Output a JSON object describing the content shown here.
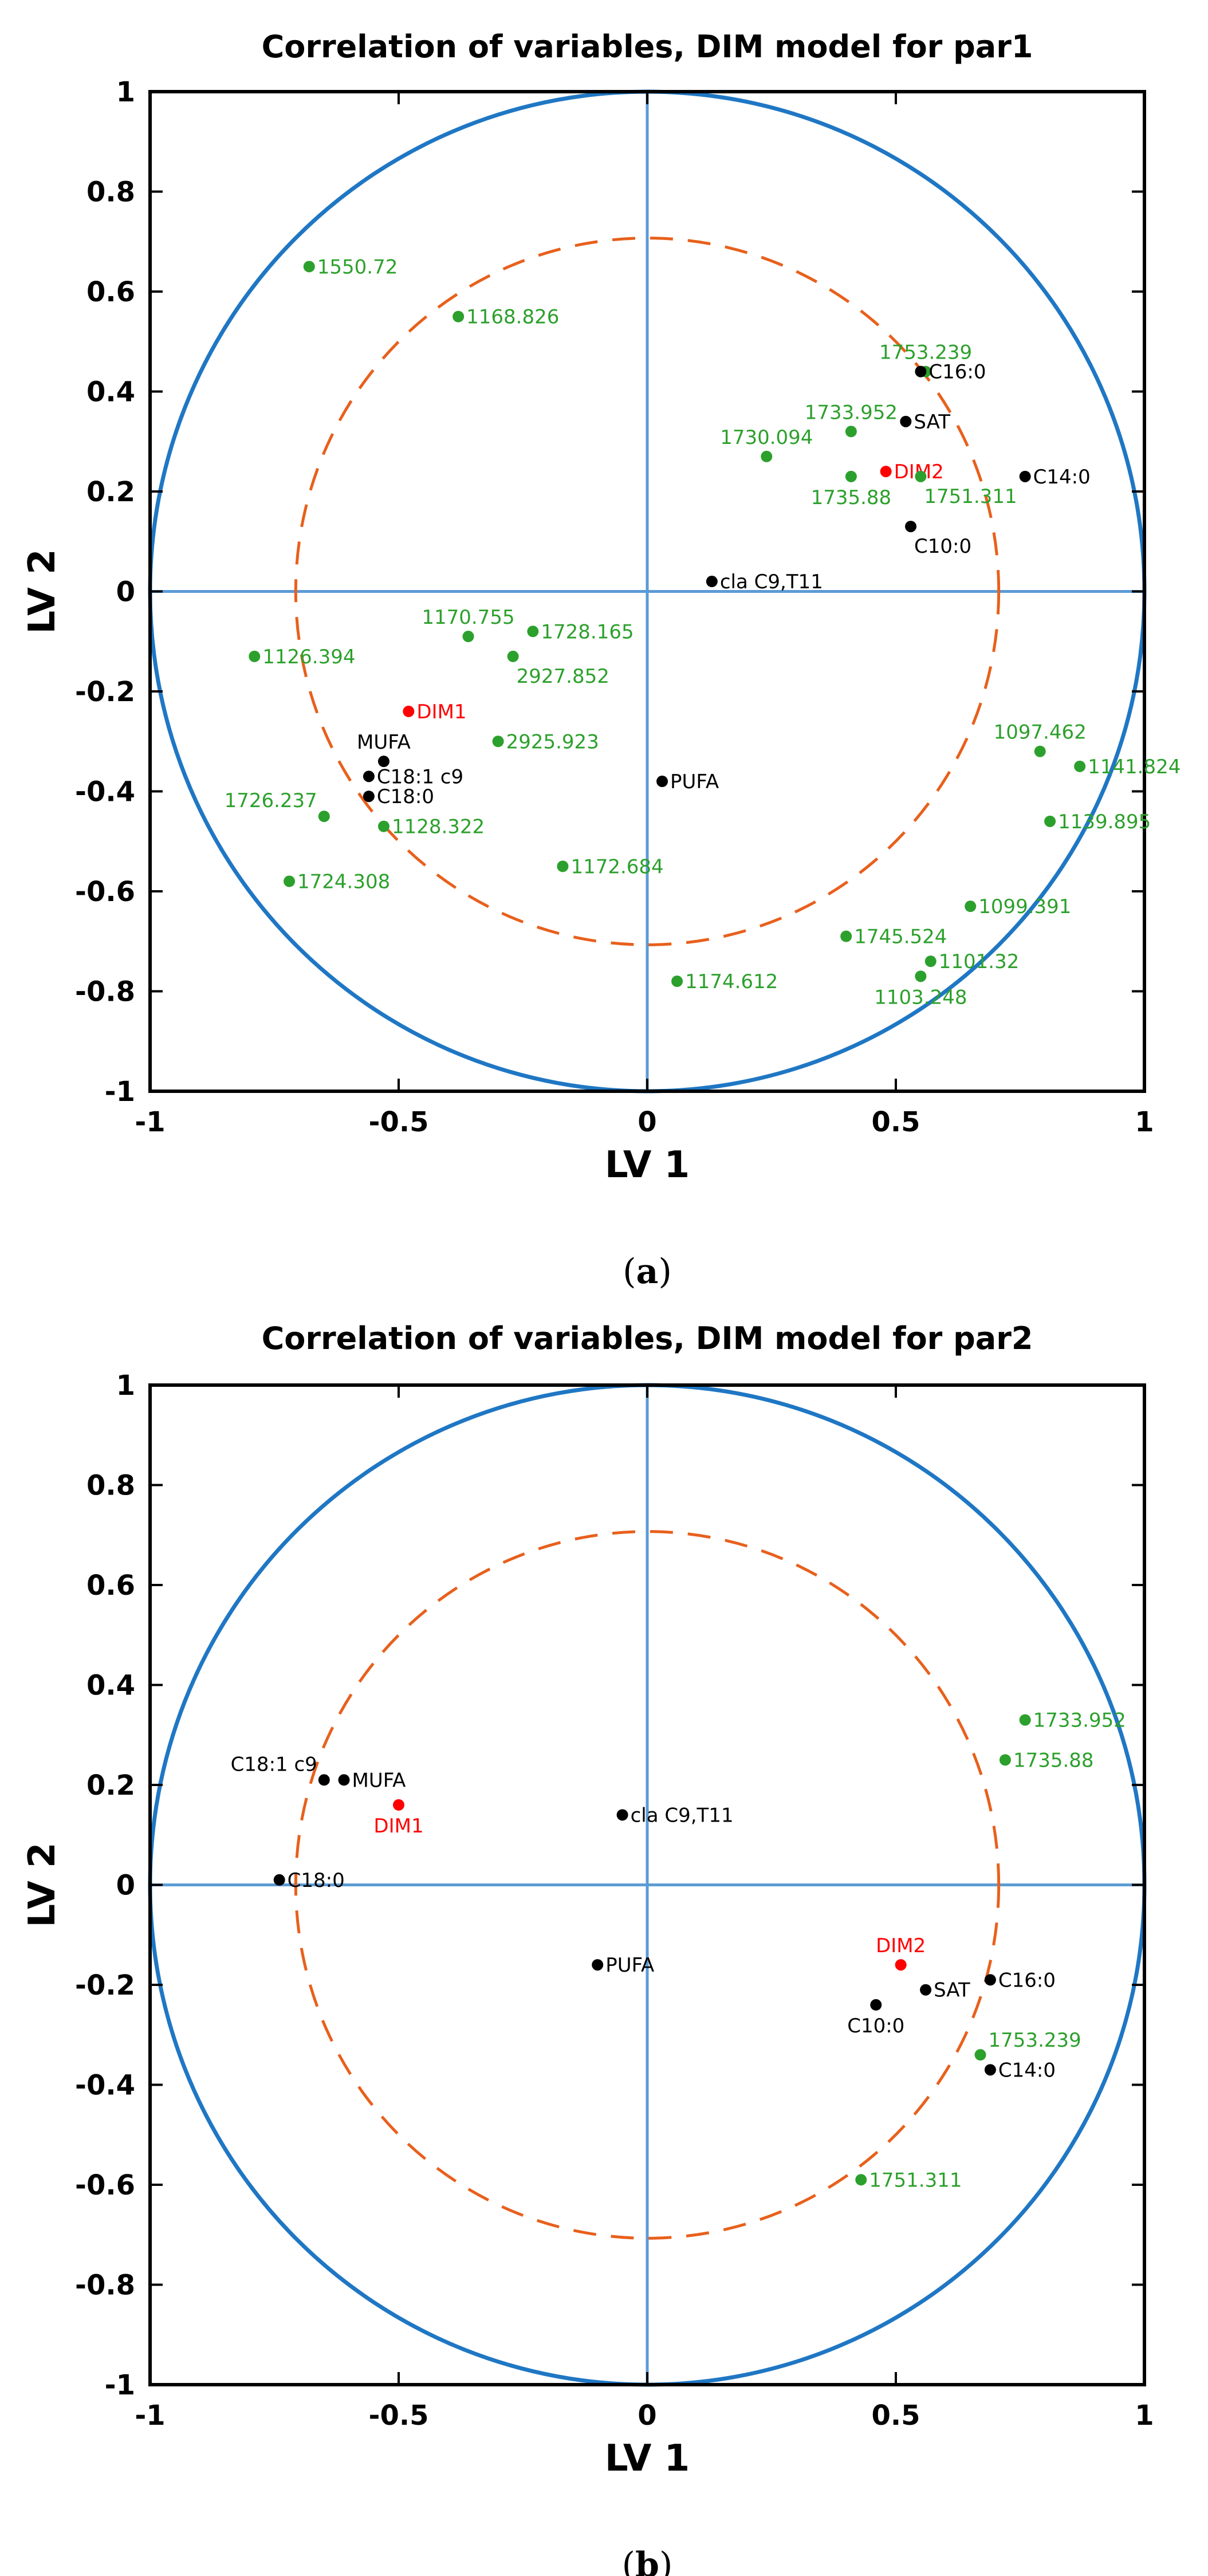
{
  "colors": {
    "unit_circle": "#1f77c4",
    "half_circle": "#e8601c",
    "axes": "#5b9bd5",
    "variable": "#000000",
    "wavenumber": "#2ca02c",
    "dummy": "#ff0000"
  },
  "chart_data": [
    {
      "type": "scatter",
      "title": "Correlation of variables, DIM model for par1",
      "xlabel": "LV  1",
      "ylabel": "LV  2",
      "xlim": [
        -1,
        1
      ],
      "ylim": [
        -1,
        1
      ],
      "xticks": [
        "-1",
        "-0.5",
        "0",
        "0.5",
        "1"
      ],
      "yticks": [
        "1",
        "0.8",
        "0.6",
        "0.4",
        "0.2",
        "0",
        "-0.2",
        "-0.4",
        "-0.6",
        "-0.8",
        "-1"
      ],
      "caption_letter": "a",
      "circles": [
        {
          "radius": 1,
          "style": "solid"
        },
        {
          "radius": 0.707,
          "style": "dashed"
        }
      ],
      "points": [
        {
          "label": "1550.72",
          "x": -0.68,
          "y": 0.65,
          "group": "wavenumber",
          "lpos": "r"
        },
        {
          "label": "1168.826",
          "x": -0.38,
          "y": 0.55,
          "group": "wavenumber",
          "lpos": "r"
        },
        {
          "label": "1753.239",
          "x": 0.56,
          "y": 0.44,
          "group": "wavenumber",
          "lpos": "ua"
        },
        {
          "label": "C16:0",
          "x": 0.55,
          "y": 0.44,
          "group": "variable",
          "lpos": "r"
        },
        {
          "label": "SAT",
          "x": 0.52,
          "y": 0.34,
          "group": "variable",
          "lpos": "r"
        },
        {
          "label": "1733.952",
          "x": 0.41,
          "y": 0.32,
          "group": "wavenumber",
          "lpos": "ua"
        },
        {
          "label": "1730.094",
          "x": 0.24,
          "y": 0.27,
          "group": "wavenumber",
          "lpos": "ua"
        },
        {
          "label": "DIM2",
          "x": 0.48,
          "y": 0.24,
          "group": "dummy",
          "lpos": "r"
        },
        {
          "label": "1735.88",
          "x": 0.41,
          "y": 0.23,
          "group": "wavenumber",
          "lpos": "b"
        },
        {
          "label": "1751.311",
          "x": 0.55,
          "y": 0.23,
          "group": "wavenumber",
          "lpos": "br"
        },
        {
          "label": "C14:0",
          "x": 0.76,
          "y": 0.23,
          "group": "variable",
          "lpos": "r"
        },
        {
          "label": "C10:0",
          "x": 0.53,
          "y": 0.13,
          "group": "variable",
          "lpos": "br"
        },
        {
          "label": "cla C9,T11",
          "x": 0.13,
          "y": 0.02,
          "group": "variable",
          "lpos": "r"
        },
        {
          "label": "1170.755",
          "x": -0.36,
          "y": -0.09,
          "group": "wavenumber",
          "lpos": "ua"
        },
        {
          "label": "1728.165",
          "x": -0.23,
          "y": -0.08,
          "group": "wavenumber",
          "lpos": "r"
        },
        {
          "label": "1126.394",
          "x": -0.79,
          "y": -0.13,
          "group": "wavenumber",
          "lpos": "r"
        },
        {
          "label": "2927.852",
          "x": -0.27,
          "y": -0.13,
          "group": "wavenumber",
          "lpos": "br"
        },
        {
          "label": "DIM1",
          "x": -0.48,
          "y": -0.24,
          "group": "dummy",
          "lpos": "r"
        },
        {
          "label": "2925.923",
          "x": -0.3,
          "y": -0.3,
          "group": "wavenumber",
          "lpos": "r"
        },
        {
          "label": "MUFA",
          "x": -0.53,
          "y": -0.34,
          "group": "variable",
          "lpos": "ua"
        },
        {
          "label": "C18:1 c9",
          "x": -0.56,
          "y": -0.37,
          "group": "variable",
          "lpos": "r"
        },
        {
          "label": "PUFA",
          "x": 0.03,
          "y": -0.38,
          "group": "variable",
          "lpos": "r"
        },
        {
          "label": "C18:0",
          "x": -0.56,
          "y": -0.41,
          "group": "variable",
          "lpos": "r"
        },
        {
          "label": "1726.237",
          "x": -0.65,
          "y": -0.45,
          "group": "wavenumber",
          "lpos": "ul"
        },
        {
          "label": "1128.322",
          "x": -0.53,
          "y": -0.47,
          "group": "wavenumber",
          "lpos": "r"
        },
        {
          "label": "1172.684",
          "x": -0.17,
          "y": -0.55,
          "group": "wavenumber",
          "lpos": "r"
        },
        {
          "label": "1724.308",
          "x": -0.72,
          "y": -0.58,
          "group": "wavenumber",
          "lpos": "r"
        },
        {
          "label": "1097.462",
          "x": 0.79,
          "y": -0.32,
          "group": "wavenumber",
          "lpos": "ua"
        },
        {
          "label": "1141.824",
          "x": 0.87,
          "y": -0.35,
          "group": "wavenumber",
          "lpos": "r"
        },
        {
          "label": "1139.895",
          "x": 0.81,
          "y": -0.46,
          "group": "wavenumber",
          "lpos": "r"
        },
        {
          "label": "1099.391",
          "x": 0.65,
          "y": -0.63,
          "group": "wavenumber",
          "lpos": "r"
        },
        {
          "label": "1745.524",
          "x": 0.4,
          "y": -0.69,
          "group": "wavenumber",
          "lpos": "r"
        },
        {
          "label": "1101.32",
          "x": 0.57,
          "y": -0.74,
          "group": "wavenumber",
          "lpos": "r"
        },
        {
          "label": "1103.248",
          "x": 0.55,
          "y": -0.77,
          "group": "wavenumber",
          "lpos": "b"
        },
        {
          "label": "1174.612",
          "x": 0.06,
          "y": -0.78,
          "group": "wavenumber",
          "lpos": "r"
        }
      ]
    },
    {
      "type": "scatter",
      "title": "Correlation of variables, DIM model for par2",
      "xlabel": "LV  1",
      "ylabel": "LV  2",
      "xlim": [
        -1,
        1
      ],
      "ylim": [
        -1,
        1
      ],
      "xticks": [
        "-1",
        "-0.5",
        "0",
        "0.5",
        "1"
      ],
      "yticks": [
        "1",
        "0.8",
        "0.6",
        "0.4",
        "0.2",
        "0",
        "-0.2",
        "-0.4",
        "-0.6",
        "-0.8",
        "-1"
      ],
      "caption_letter": "b",
      "circles": [
        {
          "radius": 1,
          "style": "solid"
        },
        {
          "radius": 0.707,
          "style": "dashed"
        }
      ],
      "points": [
        {
          "label": "1733.952",
          "x": 0.76,
          "y": 0.33,
          "group": "wavenumber",
          "lpos": "r"
        },
        {
          "label": "1735.88",
          "x": 0.72,
          "y": 0.25,
          "group": "wavenumber",
          "lpos": "r"
        },
        {
          "label": "C18:1 c9",
          "x": -0.65,
          "y": 0.21,
          "group": "variable",
          "lpos": "ul"
        },
        {
          "label": "MUFA",
          "x": -0.61,
          "y": 0.21,
          "group": "variable",
          "lpos": "r"
        },
        {
          "label": "DIM1",
          "x": -0.5,
          "y": 0.16,
          "group": "dummy",
          "lpos": "b"
        },
        {
          "label": "cla C9,T11",
          "x": -0.05,
          "y": 0.14,
          "group": "variable",
          "lpos": "r"
        },
        {
          "label": "C18:0",
          "x": -0.74,
          "y": 0.01,
          "group": "variable",
          "lpos": "r"
        },
        {
          "label": "PUFA",
          "x": -0.1,
          "y": -0.16,
          "group": "variable",
          "lpos": "r"
        },
        {
          "label": "DIM2",
          "x": 0.51,
          "y": -0.16,
          "group": "dummy",
          "lpos": "ua"
        },
        {
          "label": "SAT",
          "x": 0.56,
          "y": -0.21,
          "group": "variable",
          "lpos": "r"
        },
        {
          "label": "C16:0",
          "x": 0.69,
          "y": -0.19,
          "group": "variable",
          "lpos": "r"
        },
        {
          "label": "C10:0",
          "x": 0.46,
          "y": -0.24,
          "group": "variable",
          "lpos": "b"
        },
        {
          "label": "1753.239",
          "x": 0.67,
          "y": -0.34,
          "group": "wavenumber",
          "lpos": "ur"
        },
        {
          "label": "C14:0",
          "x": 0.69,
          "y": -0.37,
          "group": "variable",
          "lpos": "r"
        },
        {
          "label": "1751.311",
          "x": 0.43,
          "y": -0.59,
          "group": "wavenumber",
          "lpos": "r"
        }
      ]
    }
  ]
}
